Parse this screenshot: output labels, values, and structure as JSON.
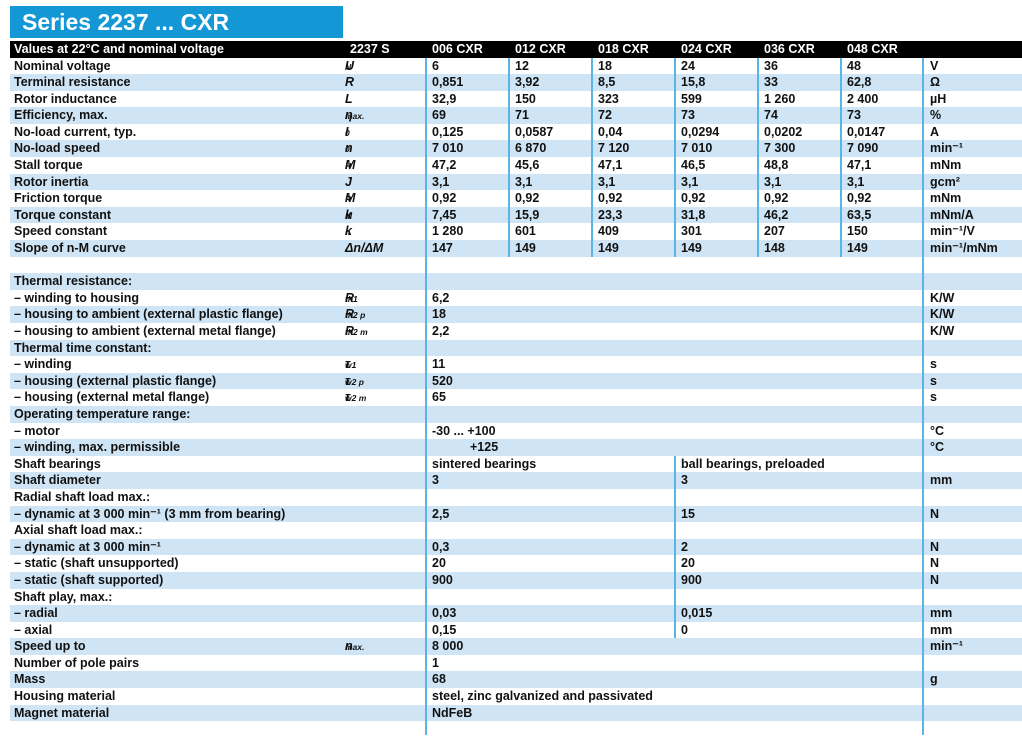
{
  "page": {
    "title": "Series 2237 ... CXR"
  },
  "colors": {
    "accent_blue": "#1397d5",
    "row_shade_blue": "#cfe4f4",
    "divider_blue": "#5ab5e5",
    "header_bg": "#000000",
    "header_text": "#ffffff"
  },
  "header": {
    "label": "Values at 22°C and nominal voltage",
    "series_code": "2237 S",
    "columns": [
      "006 CXR",
      "012 CXR",
      "018 CXR",
      "024 CXR",
      "036 CXR",
      "048 CXR"
    ]
  },
  "table": {
    "rows": [
      {
        "type": "data6",
        "shade": false,
        "label": "Nominal voltage",
        "sym": {
          "m": "U",
          "s": "N"
        },
        "values": [
          "6",
          "12",
          "18",
          "24",
          "36",
          "48"
        ],
        "unit": "V"
      },
      {
        "type": "data6",
        "shade": true,
        "label": "Terminal resistance",
        "sym": {
          "m": "R",
          "s": ""
        },
        "values": [
          "0,851",
          "3,92",
          "8,5",
          "15,8",
          "33",
          "62,8"
        ],
        "unit": "Ω"
      },
      {
        "type": "data6",
        "shade": false,
        "label": "Rotor inductance",
        "sym": {
          "m": "L",
          "s": ""
        },
        "values": [
          "32,9",
          "150",
          "323",
          "599",
          "1 260",
          "2 400"
        ],
        "unit": "µH"
      },
      {
        "type": "data6",
        "shade": true,
        "label": "Efficiency, max.",
        "sym": {
          "m": "η",
          "s": "max."
        },
        "values": [
          "69",
          "71",
          "72",
          "73",
          "74",
          "73"
        ],
        "unit": "%"
      },
      {
        "type": "data6",
        "shade": false,
        "label": "No-load current, typ.",
        "sym": {
          "m": "I",
          "s": "0"
        },
        "values": [
          "0,125",
          "0,0587",
          "0,04",
          "0,0294",
          "0,0202",
          "0,0147"
        ],
        "unit": "A"
      },
      {
        "type": "data6",
        "shade": true,
        "label": "No-load speed",
        "sym": {
          "m": "n",
          "s": "0"
        },
        "values": [
          "7 010",
          "6 870",
          "7 120",
          "7 010",
          "7 300",
          "7 090"
        ],
        "unit": "min⁻¹"
      },
      {
        "type": "data6",
        "shade": false,
        "label": "Stall torque",
        "sym": {
          "m": "M",
          "s": "H"
        },
        "values": [
          "47,2",
          "45,6",
          "47,1",
          "46,5",
          "48,8",
          "47,1"
        ],
        "unit": "mNm"
      },
      {
        "type": "data6",
        "shade": true,
        "label": "Rotor inertia",
        "sym": {
          "m": "J",
          "s": ""
        },
        "values": [
          "3,1",
          "3,1",
          "3,1",
          "3,1",
          "3,1",
          "3,1"
        ],
        "unit": "gcm²"
      },
      {
        "type": "data6",
        "shade": false,
        "label": "Friction torque",
        "sym": {
          "m": "M",
          "s": "R"
        },
        "values": [
          "0,92",
          "0,92",
          "0,92",
          "0,92",
          "0,92",
          "0,92"
        ],
        "unit": "mNm"
      },
      {
        "type": "data6",
        "shade": true,
        "label": "Torque constant",
        "sym": {
          "m": "k",
          "s": "M"
        },
        "values": [
          "7,45",
          "15,9",
          "23,3",
          "31,8",
          "46,2",
          "63,5"
        ],
        "unit": "mNm/A"
      },
      {
        "type": "data6",
        "shade": false,
        "label": "Speed constant",
        "sym": {
          "m": "k",
          "s": "n"
        },
        "values": [
          "1 280",
          "601",
          "409",
          "301",
          "207",
          "150"
        ],
        "unit": "min⁻¹/V"
      },
      {
        "type": "data6",
        "shade": true,
        "label": "Slope of n-M curve",
        "sym": {
          "m": "Δn/ΔM",
          "s": ""
        },
        "values": [
          "147",
          "149",
          "149",
          "149",
          "148",
          "149"
        ],
        "unit": "min⁻¹/mNm"
      },
      {
        "type": "blank",
        "shade": false
      },
      {
        "type": "section",
        "shade": true,
        "label": "Thermal resistance:"
      },
      {
        "type": "single",
        "shade": false,
        "label": "– winding to housing",
        "sym": {
          "m": "R",
          "s": "th1"
        },
        "value": "6,2",
        "unit": "K/W"
      },
      {
        "type": "single",
        "shade": true,
        "label": "– housing to ambient (external plastic flange)",
        "sym": {
          "m": "R",
          "s": "th2 p"
        },
        "value": "18",
        "unit": "K/W"
      },
      {
        "type": "single",
        "shade": false,
        "label": "– housing to ambient (external metal flange)",
        "sym": {
          "m": "R",
          "s": "th2 m"
        },
        "value": "2,2",
        "unit": "K/W"
      },
      {
        "type": "section",
        "shade": true,
        "label": "Thermal time constant:"
      },
      {
        "type": "single",
        "shade": false,
        "label": "– winding",
        "sym": {
          "m": "τ",
          "s": "w1"
        },
        "value": "11",
        "unit": "s"
      },
      {
        "type": "single",
        "shade": true,
        "label": "– housing (external plastic flange)",
        "sym": {
          "m": "τ",
          "s": "w2 p"
        },
        "value": "520",
        "unit": "s"
      },
      {
        "type": "single",
        "shade": false,
        "label": "– housing (external metal flange)",
        "sym": {
          "m": "τ",
          "s": "w2 m"
        },
        "value": "65",
        "unit": "s"
      },
      {
        "type": "section",
        "shade": true,
        "label": "Operating temperature range:"
      },
      {
        "type": "single",
        "shade": false,
        "label": "– motor",
        "value": "-30 ... +100",
        "unit": "°C"
      },
      {
        "type": "single",
        "shade": true,
        "label": "– winding, max. permissible",
        "value": "+125",
        "unit": "°C",
        "indent": true
      },
      {
        "type": "split",
        "shade": false,
        "label": "Shaft bearings",
        "left": "sintered bearings",
        "right": "ball bearings, preloaded",
        "unit": ""
      },
      {
        "type": "split",
        "shade": true,
        "label": "Shaft diameter",
        "left": "3",
        "right": "3",
        "unit": "mm"
      },
      {
        "type": "section_split",
        "shade": false,
        "label": "Radial shaft load max.:"
      },
      {
        "type": "split",
        "shade": true,
        "label": "– dynamic at 3 000 min⁻¹ (3 mm from bearing)",
        "left": "2,5",
        "right": "15",
        "unit": "N"
      },
      {
        "type": "section_split",
        "shade": false,
        "label": "Axial shaft load max.:"
      },
      {
        "type": "split",
        "shade": true,
        "label": "– dynamic at 3 000 min⁻¹",
        "left": "0,3",
        "right": "2",
        "unit": "N"
      },
      {
        "type": "split",
        "shade": false,
        "label": "– static (shaft unsupported)",
        "left": "20",
        "right": "20",
        "unit": "N"
      },
      {
        "type": "split",
        "shade": true,
        "label": "– static (shaft supported)",
        "left": "900",
        "right": "900",
        "unit": "N"
      },
      {
        "type": "section_split",
        "shade": false,
        "label": "Shaft play, max.:"
      },
      {
        "type": "split",
        "shade": true,
        "label": "– radial",
        "left": "0,03",
        "right": "0,015",
        "unit": "mm"
      },
      {
        "type": "split",
        "shade": false,
        "label": "– axial",
        "left": "0,15",
        "right": "0",
        "unit": "mm"
      },
      {
        "type": "single",
        "shade": true,
        "label": "Speed up to",
        "sym": {
          "m": "n",
          "s": "max."
        },
        "value": "8 000",
        "unit": "min⁻¹"
      },
      {
        "type": "single",
        "shade": false,
        "label": "Number of pole pairs",
        "value": "1",
        "unit": ""
      },
      {
        "type": "single",
        "shade": true,
        "label": "Mass",
        "value": "68",
        "unit": "g"
      },
      {
        "type": "single",
        "shade": false,
        "label": "Housing material",
        "value": "steel, zinc galvanized and passivated",
        "unit": ""
      },
      {
        "type": "single",
        "shade": true,
        "label": "Magnet material",
        "value": "NdFeB",
        "unit": ""
      },
      {
        "type": "blank",
        "shade": false,
        "last": true
      }
    ]
  }
}
